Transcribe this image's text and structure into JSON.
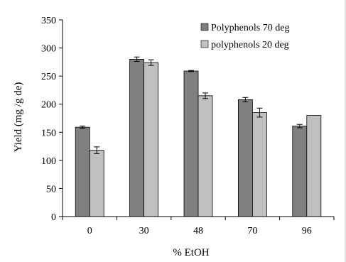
{
  "chart_data": {
    "type": "bar",
    "xlabel": "% EtOH",
    "ylabel": "Yield  (mg /g de)",
    "ylim": [
      0,
      350
    ],
    "yticks": [
      0,
      50,
      100,
      150,
      200,
      250,
      300,
      350
    ],
    "categories": [
      "0",
      "30",
      "48",
      "70",
      "96"
    ],
    "grid": false,
    "legend_position": "top-right",
    "series": [
      {
        "name": "Polyphenols 70 deg",
        "color": "#808080",
        "values": [
          159,
          280,
          259,
          208,
          161
        ],
        "errors": [
          2,
          4,
          1,
          4,
          3
        ]
      },
      {
        "name": "polyphenols 20 deg",
        "color": "#c0c0c0",
        "values": [
          118,
          274,
          215,
          185,
          180
        ],
        "errors": [
          6,
          5,
          5,
          8,
          0
        ]
      }
    ]
  }
}
